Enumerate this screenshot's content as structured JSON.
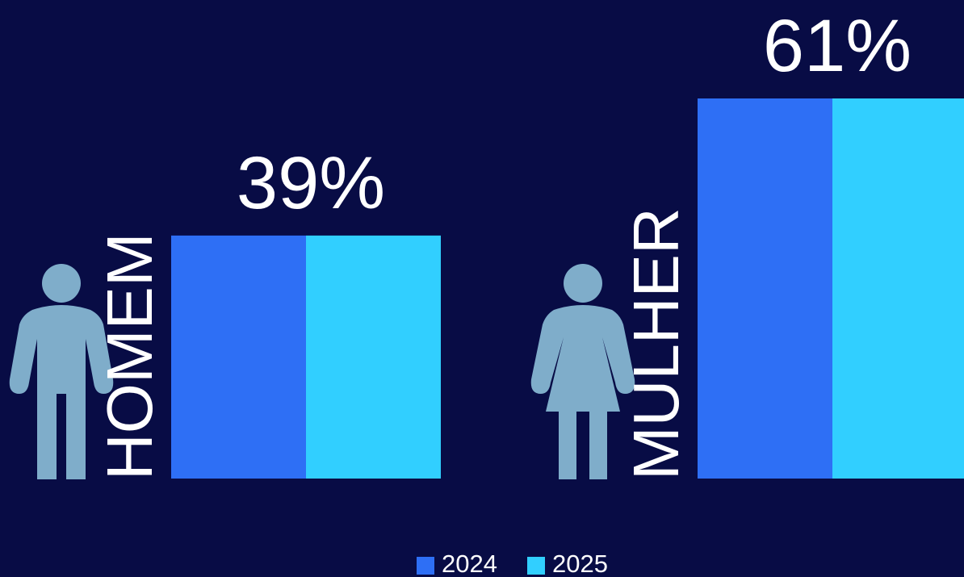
{
  "chart_data": {
    "type": "bar",
    "categories": [
      "HOMEM",
      "MULHER"
    ],
    "series": [
      {
        "name": "2024",
        "color": "#2e6ff5",
        "values": [
          39,
          61
        ],
        "value_labels": [
          "39%",
          "61%"
        ]
      },
      {
        "name": "2025",
        "color": "#31cfff",
        "values": [
          39,
          61
        ]
      }
    ]
  }
}
